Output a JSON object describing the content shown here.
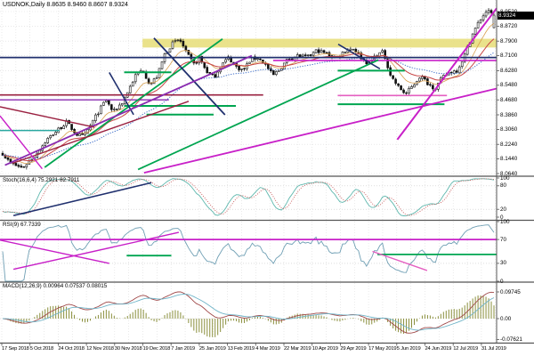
{
  "window": {
    "title": "USDNOK,Daily  8.8635 8.9460 8.8607 8.9324"
  },
  "line_colors": {
    "green": "#00a550",
    "navy": "#20306e",
    "magenta": "#c820c8",
    "purple": "#8a2bb0",
    "maroon": "#9a2040",
    "pink": "#e45fc1",
    "teal": "#2aa8a0"
  },
  "chart_data": [
    {
      "type": "candlestick",
      "panel": "main",
      "symbol": "USDNOK",
      "timeframe": "Daily",
      "open": "8.8635",
      "high": "8.9460",
      "low": "8.8607",
      "close": "8.9324",
      "current_price": "8.9324",
      "y_ticks": [
        "8.9520",
        "8.8720",
        "8.7900",
        "8.7100",
        "8.6280",
        "8.5480",
        "8.4680",
        "8.3860",
        "8.3060",
        "8.2240",
        "8.1440",
        "8.0640"
      ],
      "x_ticks": [
        "17 Sep 2018",
        "5 Oct 2018",
        "24 Oct 2018",
        "12 Nov 2018",
        "30 Nov 2018",
        "19 Dec 2018",
        "7 Jan 2019",
        "25 Jan 2019",
        "13 Feb 2019",
        "4 Mar 2019",
        "22 Mar 2019",
        "10 Apr 2019",
        "29 Apr 2019",
        "17 May 2019",
        "5 Jun 2019",
        "24 Jun 2019",
        "12 Jul 2019",
        "31 Jul 2019"
      ],
      "price_path": [
        [
          0.0,
          8.175
        ],
        [
          0.015,
          8.12
        ],
        [
          0.04,
          8.095
        ],
        [
          0.065,
          8.16
        ],
        [
          0.09,
          8.25
        ],
        [
          0.115,
          8.31
        ],
        [
          0.13,
          8.345
        ],
        [
          0.15,
          8.28
        ],
        [
          0.165,
          8.265
        ],
        [
          0.19,
          8.38
        ],
        [
          0.21,
          8.47
        ],
        [
          0.225,
          8.4
        ],
        [
          0.245,
          8.46
        ],
        [
          0.27,
          8.6
        ],
        [
          0.285,
          8.635
        ],
        [
          0.3,
          8.55
        ],
        [
          0.315,
          8.6
        ],
        [
          0.33,
          8.72
        ],
        [
          0.345,
          8.775
        ],
        [
          0.36,
          8.8
        ],
        [
          0.375,
          8.72
        ],
        [
          0.39,
          8.66
        ],
        [
          0.4,
          8.7
        ],
        [
          0.415,
          8.625
        ],
        [
          0.43,
          8.59
        ],
        [
          0.445,
          8.66
        ],
        [
          0.46,
          8.7
        ],
        [
          0.475,
          8.65
        ],
        [
          0.49,
          8.63
        ],
        [
          0.505,
          8.69
        ],
        [
          0.52,
          8.7
        ],
        [
          0.535,
          8.66
        ],
        [
          0.55,
          8.6
        ],
        [
          0.565,
          8.64
        ],
        [
          0.58,
          8.69
        ],
        [
          0.6,
          8.71
        ],
        [
          0.62,
          8.7
        ],
        [
          0.64,
          8.74
        ],
        [
          0.66,
          8.72
        ],
        [
          0.68,
          8.7
        ],
        [
          0.7,
          8.745
        ],
        [
          0.715,
          8.75
        ],
        [
          0.73,
          8.7
        ],
        [
          0.745,
          8.665
        ],
        [
          0.76,
          8.715
        ],
        [
          0.775,
          8.73
        ],
        [
          0.79,
          8.6
        ],
        [
          0.805,
          8.54
        ],
        [
          0.82,
          8.5
        ],
        [
          0.835,
          8.545
        ],
        [
          0.85,
          8.6
        ],
        [
          0.865,
          8.56
        ],
        [
          0.88,
          8.53
        ],
        [
          0.895,
          8.59
        ],
        [
          0.91,
          8.62
        ],
        [
          0.925,
          8.63
        ],
        [
          0.94,
          8.71
        ],
        [
          0.955,
          8.82
        ],
        [
          0.97,
          8.9
        ],
        [
          0.985,
          8.955
        ],
        [
          1.0,
          8.9324
        ]
      ],
      "highlight_band": {
        "price_from": 8.755,
        "price_to": 8.803,
        "x_from": 0.287,
        "x_to": 1,
        "color": "#e8df7e"
      },
      "moving_averages": [
        {
          "name": "ma-fast",
          "period": 10,
          "color": "#d8a050",
          "style": "solid",
          "width": 0.8
        },
        {
          "name": "ma-medium",
          "period": 21,
          "color": "#c84646",
          "style": "solid",
          "width": 1
        },
        {
          "name": "ma-slow",
          "period": 45,
          "color": "#3b6cc8",
          "style": "dotted",
          "width": 1
        }
      ],
      "annotations": [
        {
          "x1": 0,
          "p1": 8.7,
          "x2": 1,
          "p2": 8.7,
          "c": "navy",
          "w": 1.8
        },
        {
          "x1": 0.55,
          "p1": 8.684,
          "x2": 1,
          "p2": 8.684,
          "c": "magenta",
          "w": 1.6
        },
        {
          "x1": 0,
          "p1": 8.495,
          "x2": 0.53,
          "p2": 8.495,
          "c": "maroon",
          "w": 1.6
        },
        {
          "x1": 0,
          "p1": 8.468,
          "x2": 0.34,
          "p2": 8.468,
          "c": "purple",
          "w": 1.4
        },
        {
          "x1": 0.68,
          "p1": 8.492,
          "x2": 0.9,
          "p2": 8.492,
          "c": "pink",
          "w": 1.6
        },
        {
          "x1": 0.25,
          "p1": 8.619,
          "x2": 0.345,
          "p2": 8.619,
          "c": "green",
          "w": 2
        },
        {
          "x1": 0.25,
          "p1": 8.435,
          "x2": 0.475,
          "p2": 8.435,
          "c": "green",
          "w": 2
        },
        {
          "x1": 0.295,
          "p1": 8.387,
          "x2": 0.43,
          "p2": 8.387,
          "c": "green",
          "w": 2
        },
        {
          "x1": 0.68,
          "p1": 8.628,
          "x2": 0.815,
          "p2": 8.628,
          "c": "green",
          "w": 2
        },
        {
          "x1": 0.68,
          "p1": 8.444,
          "x2": 0.895,
          "p2": 8.444,
          "c": "green",
          "w": 2
        },
        {
          "x1": 0.09,
          "p1": 8.098,
          "x2": 0.448,
          "p2": 8.802,
          "c": "green",
          "w": 1.8
        },
        {
          "x1": 0.278,
          "p1": 8.086,
          "x2": 0.762,
          "p2": 8.687,
          "c": "green",
          "w": 1.8
        },
        {
          "x1": 0.31,
          "p1": 8.807,
          "x2": 0.453,
          "p2": 8.386,
          "c": "navy",
          "w": 1.8
        },
        {
          "x1": 0.22,
          "p1": 8.618,
          "x2": 0.269,
          "p2": 8.387,
          "c": "navy",
          "w": 1.6
        },
        {
          "x1": 0.681,
          "p1": 8.773,
          "x2": 0.765,
          "p2": 8.638,
          "c": "navy",
          "w": 1.6
        },
        {
          "x1": 0.01,
          "p1": 8.11,
          "x2": 0.507,
          "p2": 8.71,
          "c": "purple",
          "w": 1.8
        },
        {
          "x1": 0.29,
          "p1": 8.068,
          "x2": 1,
          "p2": 8.53,
          "c": "magenta",
          "w": 1.8
        },
        {
          "x1": 0.8,
          "p1": 8.25,
          "x2": 1,
          "p2": 8.97,
          "c": "magenta",
          "w": 2
        },
        {
          "x1": 0.025,
          "p1": 8.12,
          "x2": 0.38,
          "p2": 8.46,
          "c": "maroon",
          "w": 1.4
        },
        {
          "x1": 0,
          "p1": 8.43,
          "x2": 0.19,
          "p2": 8.318,
          "c": "maroon",
          "w": 1.4
        },
        {
          "x1": 0,
          "p1": 8.3,
          "x2": 0.12,
          "p2": 8.3,
          "c": "teal",
          "w": 1.4
        },
        {
          "x1": 0,
          "p1": 8.38,
          "x2": 0.085,
          "p2": 8.09,
          "c": "magenta",
          "w": 1.4
        }
      ]
    },
    {
      "type": "line",
      "panel": "stochastic",
      "label": "Stoch(16,6,4) 75.2921 82.7911",
      "params": [
        16,
        6,
        4
      ],
      "values": [
        "75.2921",
        "82.7911"
      ],
      "y_ticks": [
        "100",
        "80",
        "20",
        "0"
      ],
      "levels": [
        80,
        20
      ],
      "colors": {
        "main": "#5fb8ae",
        "signal": "#c85a5a"
      },
      "annotations": [
        {
          "x1": 0.027,
          "v1": 4,
          "x2": 0.305,
          "v2": 88,
          "c": "navy",
          "w": 1.6
        }
      ]
    },
    {
      "type": "line",
      "panel": "rsi",
      "label": "RSI(9) 67.7339",
      "period": 9,
      "value": "67.7339",
      "y_ticks": [
        "100",
        "70",
        "30",
        "0"
      ],
      "levels": [
        70,
        30
      ],
      "colors": {
        "main": "#6f9fb4"
      },
      "annotations": [
        {
          "x1": 0,
          "v1": 70,
          "x2": 1,
          "v2": 70,
          "c": "magenta",
          "w": 1.8
        },
        {
          "x1": 0.255,
          "v1": 43,
          "x2": 0.345,
          "v2": 43,
          "c": "green",
          "w": 1.8
        },
        {
          "x1": 0.76,
          "v1": 45,
          "x2": 1,
          "v2": 45,
          "c": "green",
          "w": 1.8
        },
        {
          "x1": 0.027,
          "v1": 20,
          "x2": 0.36,
          "v2": 82,
          "c": "magenta",
          "w": 1.4
        },
        {
          "x1": 0,
          "v1": 69,
          "x2": 0.22,
          "v2": 30,
          "c": "magenta",
          "w": 1.4
        },
        {
          "x1": 0.75,
          "v1": 50,
          "x2": 0.86,
          "v2": 18,
          "c": "pink",
          "w": 1.4
        }
      ]
    },
    {
      "type": "macd",
      "panel": "macd",
      "label": "MACD(12,26,9) 0.00964 0.07537 0.08015",
      "params": [
        12,
        26,
        9
      ],
      "values": [
        "0.00964",
        "0.07537",
        "0.08015"
      ],
      "y_ticks": [
        "0.09745",
        "0.00",
        "-0.07621"
      ],
      "colors": {
        "histogram": "#8a8f3c",
        "main": "#a04848",
        "signal": "#6fb4c8"
      }
    }
  ]
}
